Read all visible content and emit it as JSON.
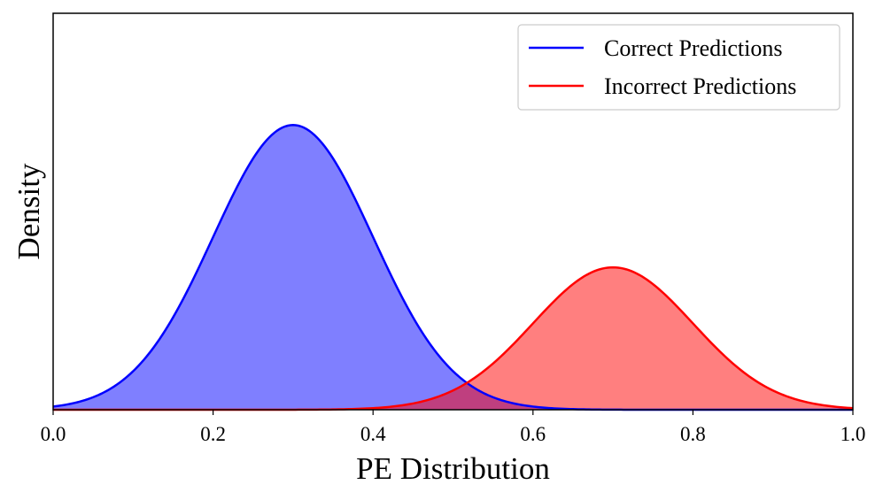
{
  "chart_data": {
    "type": "area",
    "title": "",
    "xlabel": "PE Distribution",
    "ylabel": "Density",
    "xlim": [
      0.0,
      1.0
    ],
    "ylim": [
      0,
      5.0
    ],
    "x_ticks": [
      "0.0",
      "0.2",
      "0.4",
      "0.6",
      "0.8",
      "1.0"
    ],
    "y_ticks": [],
    "grid": false,
    "legend_position": "top-right",
    "series": [
      {
        "name": "Correct Predictions",
        "distribution": "normal",
        "mean": 0.3,
        "std": 0.1,
        "weight": 0.9,
        "peak_density": 3.59,
        "line_color": "#0000ff",
        "fill_color": "#0000ff",
        "fill_alpha": 0.5
      },
      {
        "name": "Incorrect Predictions",
        "distribution": "normal",
        "mean": 0.7,
        "std": 0.1,
        "weight": 0.45,
        "peak_density": 1.8,
        "line_color": "#ff0000",
        "fill_color": "#ff0000",
        "fill_alpha": 0.5
      }
    ]
  }
}
